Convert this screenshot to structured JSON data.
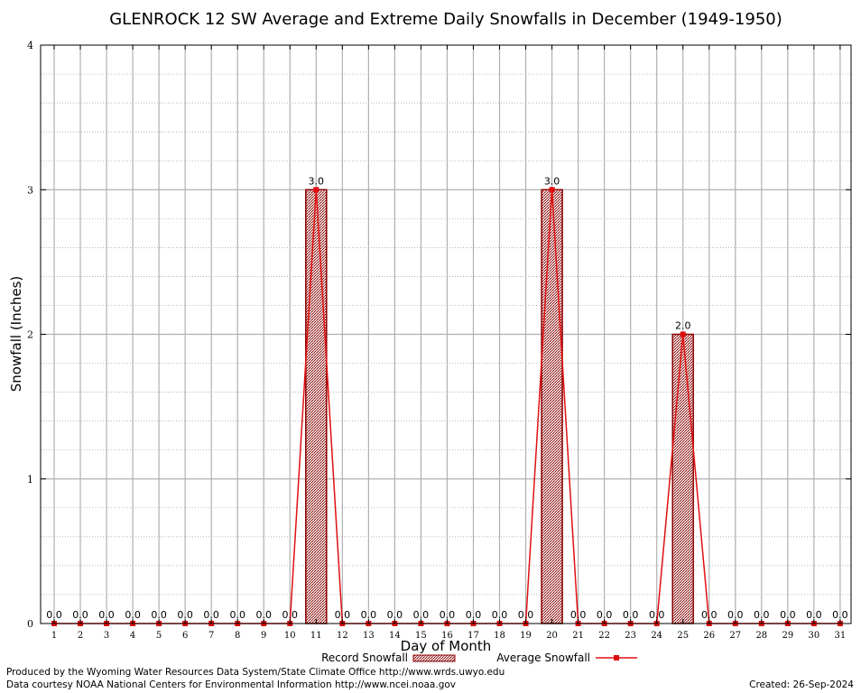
{
  "chart_data": {
    "type": "bar",
    "title": "GLENROCK 12 SW Average and Extreme Daily Snowfalls in December (1949-1950)",
    "xlabel": "Day of Month",
    "ylabel": "Snowfall (Inches)",
    "ylim": [
      0,
      4
    ],
    "yticks": [
      "0",
      "1",
      "2",
      "3",
      "4"
    ],
    "categories": [
      "1",
      "2",
      "3",
      "4",
      "5",
      "6",
      "7",
      "8",
      "9",
      "10",
      "11",
      "12",
      "13",
      "14",
      "15",
      "16",
      "17",
      "18",
      "19",
      "20",
      "21",
      "22",
      "23",
      "24",
      "25",
      "26",
      "27",
      "28",
      "29",
      "30",
      "31"
    ],
    "series": [
      {
        "name": "Record Snowfall",
        "values": [
          0,
          0,
          0,
          0,
          0,
          0,
          0,
          0,
          0,
          0,
          3.0,
          0,
          0,
          0,
          0,
          0,
          0,
          0,
          0,
          3.0,
          0,
          0,
          0,
          0,
          2.0,
          0,
          0,
          0,
          0,
          0,
          0
        ]
      },
      {
        "name": "Average Snowfall",
        "values": [
          0,
          0,
          0,
          0,
          0,
          0,
          0,
          0,
          0,
          0,
          3.0,
          0,
          0,
          0,
          0,
          0,
          0,
          0,
          0,
          3.0,
          0,
          0,
          0,
          0,
          2.0,
          0,
          0,
          0,
          0,
          0,
          0
        ]
      }
    ],
    "data_labels": [
      "0.0",
      "0.0",
      "0.0",
      "0.0",
      "0.0",
      "0.0",
      "0.0",
      "0.0",
      "0.0",
      "0.0",
      "3.0",
      "0.0",
      "0.0",
      "0.0",
      "0.0",
      "0.0",
      "0.0",
      "0.0",
      "0.0",
      "3.0",
      "0.0",
      "0.0",
      "0.0",
      "0.0",
      "2.0",
      "0.0",
      "0.0",
      "0.0",
      "0.0",
      "0.0",
      "0.0"
    ],
    "grid": true,
    "legend": "bottom",
    "colors": {
      "bar_fill": "#c8a0a0",
      "bar_edge": "#8b0000",
      "line": "#e01010"
    }
  },
  "footer": {
    "produced_by": "Produced by the Wyoming Water Resources Data System/State Climate Office http://www.wrds.uwyo.edu",
    "courtesy": "Data courtesy NOAA National Centers for Environmental Information http://www.ncei.noaa.gov",
    "created": "Created:  26-Sep-2024"
  }
}
